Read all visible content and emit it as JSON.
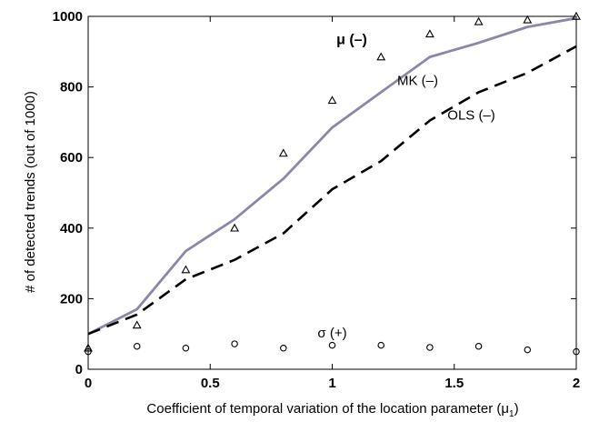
{
  "chart_data": {
    "type": "line",
    "xlabel": "Coefficient of temporal variation of the location parameter (μ",
    "xlabel_sub": "1",
    "xlabel_close": ")",
    "ylabel": "# of detected trends (out of 1000)",
    "xlim": [
      0,
      2
    ],
    "ylim": [
      0,
      1000
    ],
    "x_ticks": [
      0,
      0.5,
      1,
      1.5,
      2
    ],
    "x_tick_labels": [
      "0",
      "0.5",
      "1",
      "1.5",
      "2"
    ],
    "y_ticks": [
      0,
      200,
      400,
      600,
      800,
      1000
    ],
    "y_tick_labels": [
      "0",
      "200",
      "400",
      "600",
      "800",
      "1000"
    ],
    "grid": false,
    "x": [
      0,
      0.2,
      0.4,
      0.6,
      0.8,
      1.0,
      1.2,
      1.4,
      1.6,
      1.8,
      2.0
    ],
    "series": [
      {
        "name": "MK (–)",
        "style": "solid",
        "color": "#8a87a8",
        "values": [
          100,
          170,
          335,
          425,
          540,
          685,
          785,
          885,
          925,
          970,
          995
        ]
      },
      {
        "name": "OLS (–)",
        "style": "dashed",
        "color": "#000000",
        "values": [
          100,
          155,
          255,
          310,
          385,
          510,
          590,
          705,
          785,
          840,
          915
        ]
      },
      {
        "name": "μ (–)",
        "style": "triangle-markers",
        "color": "#000000",
        "values": [
          60,
          125,
          282,
          400,
          612,
          762,
          885,
          950,
          985,
          990,
          1000
        ]
      },
      {
        "name": "σ (+)",
        "style": "circle-markers",
        "color": "#000000",
        "values": [
          50,
          65,
          60,
          72,
          60,
          68,
          68,
          62,
          65,
          55,
          50
        ]
      }
    ],
    "annotations": [
      {
        "text": "μ (–)",
        "x": 1.08,
        "y": 922,
        "bold": true
      },
      {
        "text": "MK (–)",
        "x": 1.35,
        "y": 805,
        "bold": false
      },
      {
        "text": "OLS (–)",
        "x": 1.57,
        "y": 708,
        "bold": false
      },
      {
        "text": "σ (+)",
        "x": 1.0,
        "y": 90,
        "bold": false
      }
    ]
  }
}
